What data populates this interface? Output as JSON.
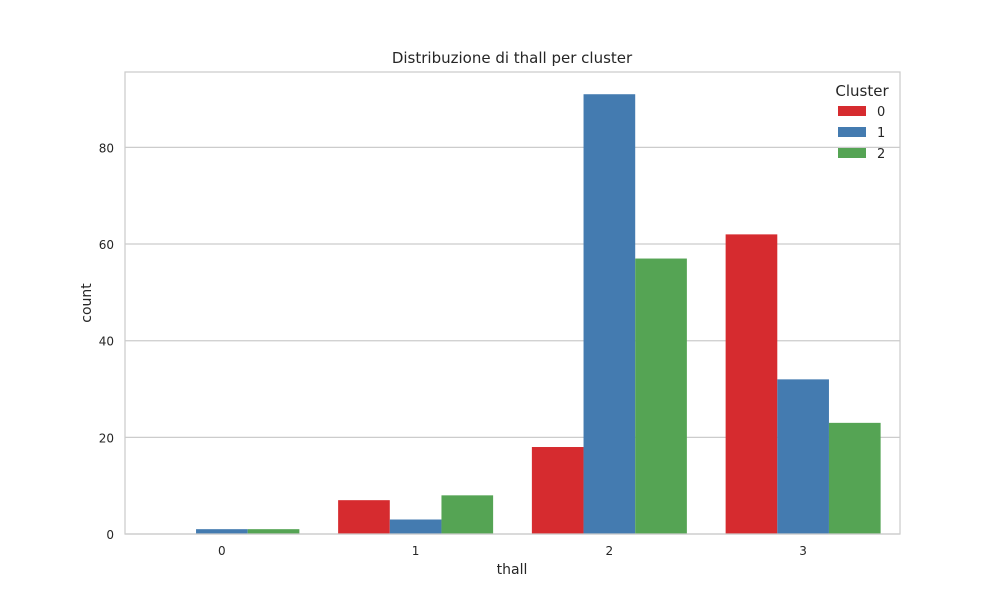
{
  "chart_data": {
    "type": "bar",
    "title": "Distribuzione di thall per cluster",
    "xlabel": "thall",
    "ylabel": "count",
    "categories": [
      "0",
      "1",
      "2",
      "3"
    ],
    "series": [
      {
        "name": "0",
        "color": "#d62b2f",
        "values": [
          0,
          7,
          18,
          62
        ]
      },
      {
        "name": "1",
        "color": "#447bb0",
        "values": [
          1,
          3,
          91,
          32
        ]
      },
      {
        "name": "2",
        "color": "#55a454",
        "values": [
          1,
          8,
          57,
          23
        ]
      }
    ],
    "ylim": [
      0,
      95.6
    ],
    "yticks": [
      0,
      20,
      40,
      60,
      80
    ],
    "grid": true,
    "legend": {
      "title": "Cluster",
      "placement": "top-right"
    }
  },
  "colors": {
    "background": "#ffffff",
    "grid": "#cccccc",
    "axes_edge": "#cccccc",
    "text": "#262626"
  }
}
